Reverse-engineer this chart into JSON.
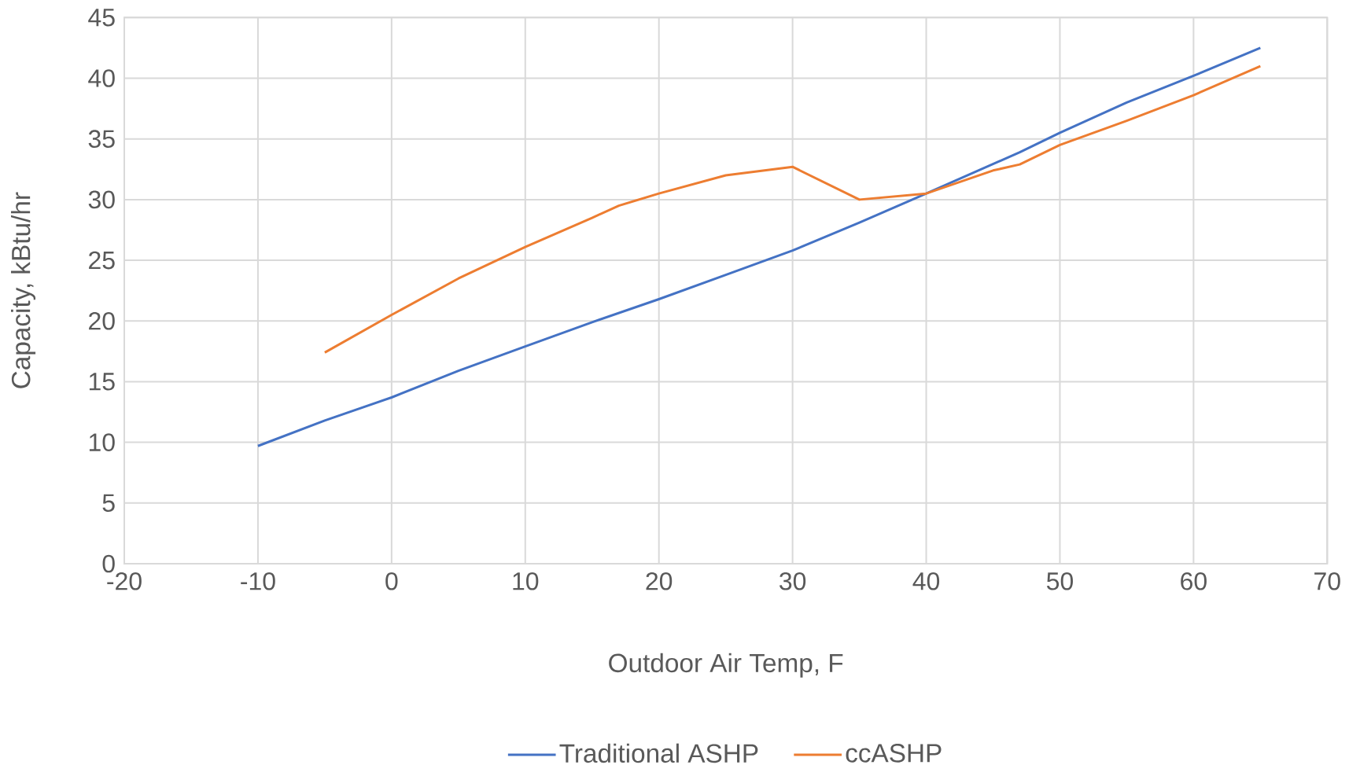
{
  "chart_data": {
    "type": "line",
    "xlabel": "Outdoor Air Temp, F",
    "ylabel": "Capacity, kBtu/hr",
    "xlim": [
      -20,
      70
    ],
    "xticks": [
      -20,
      -10,
      0,
      10,
      20,
      30,
      40,
      50,
      60,
      70
    ],
    "ylim": [
      0,
      45
    ],
    "yticks": [
      0,
      5,
      10,
      15,
      20,
      25,
      30,
      35,
      40,
      45
    ],
    "grid": true,
    "legend": "bottom",
    "series": [
      {
        "name": "Traditional ASHP",
        "color": "#4472c4",
        "x": [
          -10,
          -5,
          0,
          5,
          10,
          15,
          20,
          25,
          30,
          35,
          40,
          47,
          50,
          55,
          60,
          65
        ],
        "values": [
          9.7,
          11.8,
          13.7,
          15.9,
          17.9,
          19.9,
          21.8,
          23.8,
          25.8,
          28.1,
          30.5,
          33.9,
          35.5,
          38.0,
          40.2,
          42.5
        ]
      },
      {
        "name": "ccASHP",
        "color": "#ed7d31",
        "x": [
          -5,
          0,
          5,
          10,
          15,
          17,
          20,
          25,
          30,
          35,
          40,
          45,
          47,
          50,
          55,
          60,
          65
        ],
        "values": [
          17.4,
          20.5,
          23.5,
          26.1,
          28.5,
          29.5,
          30.5,
          32.0,
          32.7,
          30.0,
          30.5,
          32.4,
          32.9,
          34.5,
          36.5,
          38.6,
          41.0
        ]
      }
    ]
  }
}
